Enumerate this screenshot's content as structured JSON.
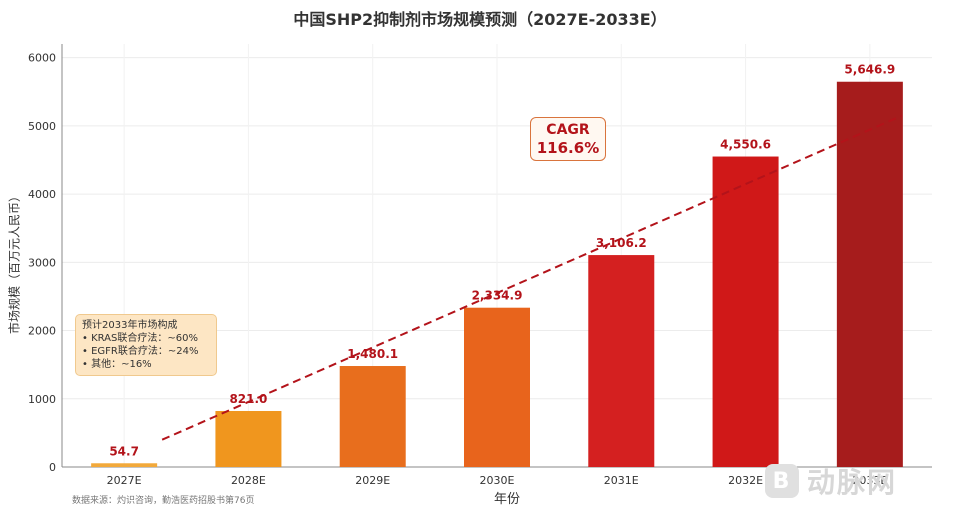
{
  "title": "中国SHP2抑制剂市场规模预测（2027E-2033E）",
  "chart_data": {
    "type": "bar",
    "categories": [
      "2027E",
      "2028E",
      "2029E",
      "2030E",
      "2031E",
      "2032E",
      "2033E"
    ],
    "values": [
      54.7,
      821.0,
      1480.1,
      2334.9,
      3106.2,
      4550.6,
      5646.9
    ],
    "value_labels": [
      "54.7",
      "821.0",
      "1,480.1",
      "2,334.9",
      "3,106.2",
      "4,550.6",
      "5,646.9"
    ],
    "bar_colors": [
      "#f2a93b",
      "#f0961e",
      "#e86e1d",
      "#e8641c",
      "#d42020",
      "#d01818",
      "#a61c1c"
    ],
    "value_label_color": "#b3131a",
    "xlabel": "年份",
    "ylabel": "市场规模（百万元人民币）",
    "ylim": [
      0,
      6200
    ],
    "yticks": [
      0,
      1000,
      2000,
      3000,
      4000,
      5000,
      6000
    ],
    "grid": true,
    "trend_line": {
      "style": "dashed",
      "color": "#b3131a",
      "from": 400,
      "to": 5150
    },
    "annotations": {
      "cagr_label": "CAGR",
      "cagr_value": "116.6%"
    },
    "composition_box": {
      "title": "预计2033年市场构成",
      "items": [
        "• KRAS联合疗法：~60%",
        "• EGFR联合疗法：~24%",
        "• 其他：~16%"
      ]
    }
  },
  "source": "数据来源：灼识咨询，勤浩医药招股书第76页",
  "watermark": {
    "text": "动脉网",
    "icon": "B"
  }
}
